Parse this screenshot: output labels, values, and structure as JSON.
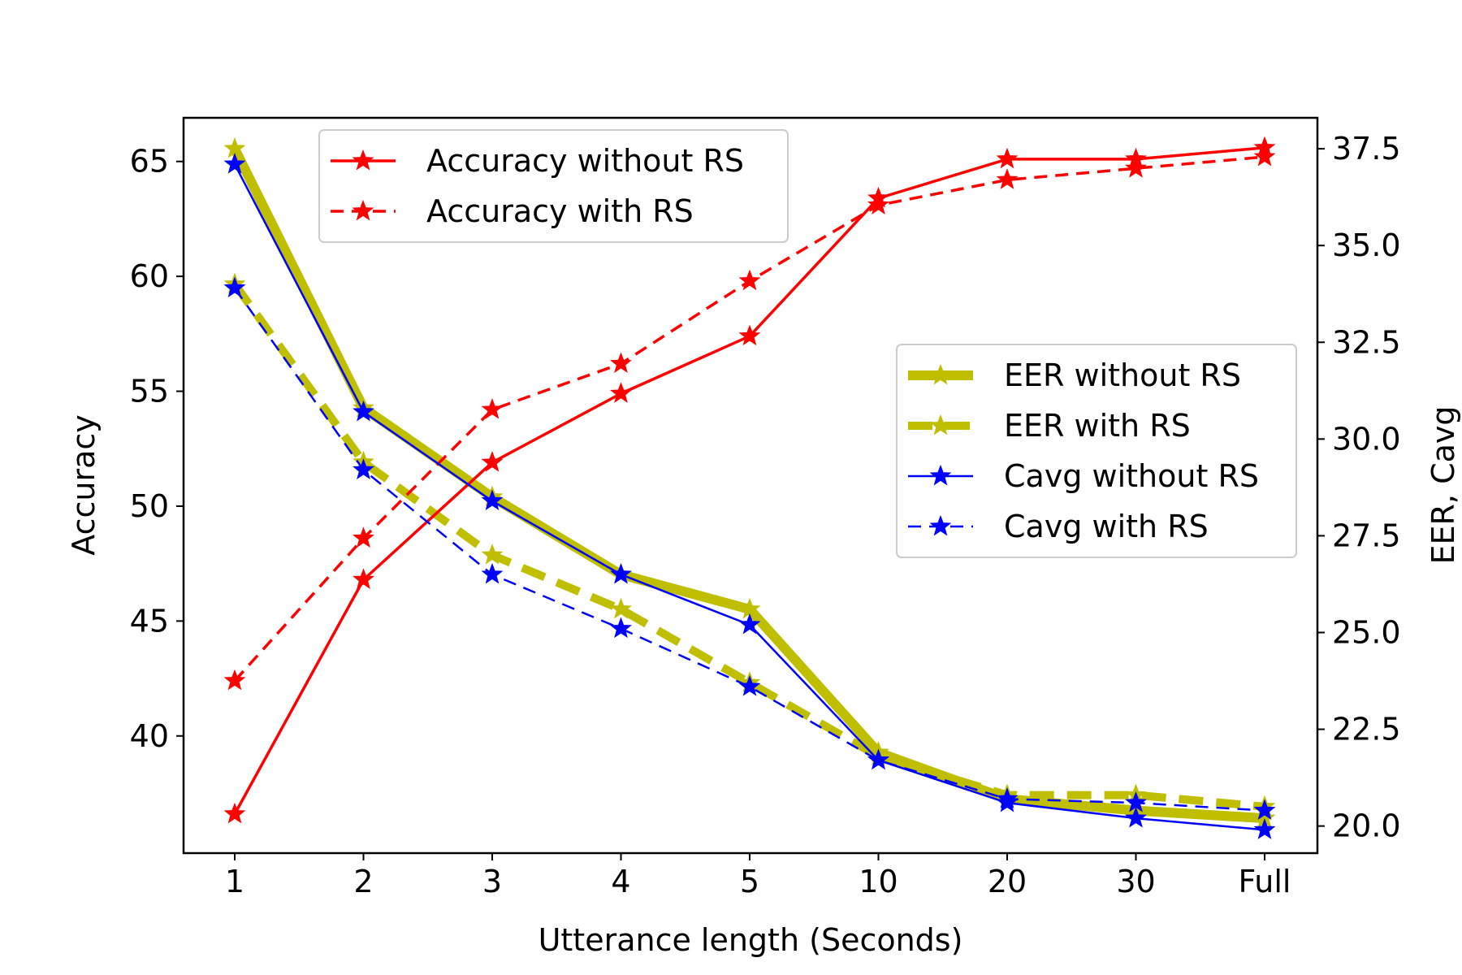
{
  "chart_data": {
    "type": "line",
    "categories": [
      "1",
      "2",
      "3",
      "4",
      "5",
      "10",
      "20",
      "30",
      "Full"
    ],
    "xlabel": "Utterance length (Seconds)",
    "ylabel_left": "Accuracy",
    "ylabel_right": "EER, Cavg",
    "left_axis": {
      "range": [
        34.9,
        66.9
      ],
      "ticks": [
        40,
        45,
        50,
        55,
        60,
        65
      ],
      "tick_labels": [
        "40",
        "45",
        "50",
        "55",
        "60",
        "65"
      ]
    },
    "right_axis": {
      "range": [
        19.3,
        38.3
      ],
      "ticks": [
        20.0,
        22.5,
        25.0,
        27.5,
        30.0,
        32.5,
        35.0,
        37.5
      ],
      "tick_labels": [
        "20.0",
        "22.5",
        "25.0",
        "27.5",
        "30.0",
        "32.5",
        "35.0",
        "37.5"
      ]
    },
    "series": [
      {
        "name": "Accuracy without RS",
        "axis": "left",
        "color": "#ff0000",
        "style": "solid",
        "width": 3.5,
        "marker": "star",
        "values": [
          36.6,
          46.8,
          51.9,
          54.9,
          57.4,
          63.4,
          65.1,
          65.1,
          65.6
        ]
      },
      {
        "name": "Accuracy with RS",
        "axis": "left",
        "color": "#ff0000",
        "style": "dashed",
        "width": 3.5,
        "marker": "star",
        "values": [
          42.4,
          48.6,
          54.2,
          56.2,
          59.8,
          63.1,
          64.2,
          64.7,
          65.2
        ]
      },
      {
        "name": "EER without RS",
        "axis": "right",
        "color": "#bfbf00",
        "style": "solid",
        "width": 12,
        "marker": "star",
        "values": [
          37.5,
          30.8,
          28.5,
          26.5,
          25.6,
          21.9,
          20.7,
          20.4,
          20.2
        ]
      },
      {
        "name": "EER with RS",
        "axis": "right",
        "color": "#bfbf00",
        "style": "dashed",
        "width": 10,
        "marker": "star",
        "values": [
          34.0,
          29.4,
          27.0,
          25.6,
          23.7,
          21.8,
          20.8,
          20.8,
          20.5
        ]
      },
      {
        "name": "Cavg without RS",
        "axis": "right",
        "color": "#0000ff",
        "style": "solid",
        "width": 2.5,
        "marker": "star",
        "values": [
          37.1,
          30.7,
          28.4,
          26.5,
          25.2,
          21.7,
          20.6,
          20.2,
          19.9
        ]
      },
      {
        "name": "Cavg with RS",
        "axis": "right",
        "color": "#0000ff",
        "style": "dashed",
        "width": 2.5,
        "marker": "star",
        "values": [
          33.9,
          29.2,
          26.5,
          25.1,
          23.6,
          21.7,
          20.7,
          20.6,
          20.4
        ]
      }
    ],
    "legends": [
      {
        "placement": "top-left",
        "entries": [
          "Accuracy without RS",
          "Accuracy with RS"
        ]
      },
      {
        "placement": "center-right",
        "entries": [
          "EER without RS",
          "EER with RS",
          "Cavg without RS",
          "Cavg with RS"
        ]
      }
    ]
  }
}
